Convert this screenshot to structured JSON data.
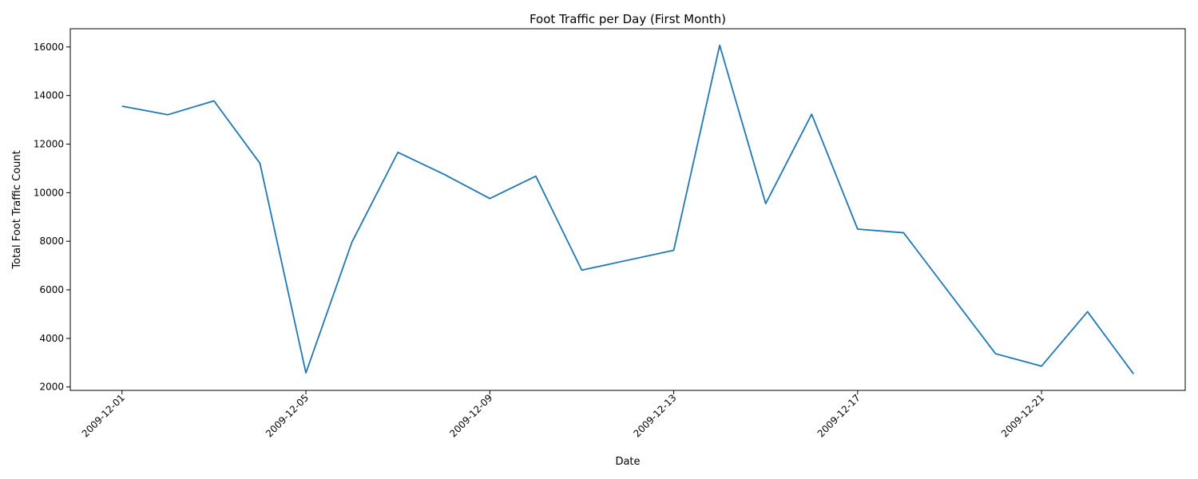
{
  "chart_data": {
    "type": "line",
    "title": "Foot Traffic per Day (First Month)",
    "xlabel": "Date",
    "ylabel": "Total Foot Traffic Count",
    "color": "#1f77b4",
    "grid": false,
    "x": [
      "2009-12-01",
      "2009-12-02",
      "2009-12-03",
      "2009-12-04",
      "2009-12-05",
      "2009-12-06",
      "2009-12-07",
      "2009-12-08",
      "2009-12-09",
      "2009-12-10",
      "2009-12-11",
      "2009-12-13",
      "2009-12-14",
      "2009-12-15",
      "2009-12-16",
      "2009-12-17",
      "2009-12-18",
      "2009-12-20",
      "2009-12-21",
      "2009-12-22",
      "2009-12-23"
    ],
    "values": [
      13560,
      13210,
      13780,
      11210,
      2580,
      7960,
      11660,
      10760,
      9760,
      10680,
      6810,
      7630,
      16070,
      9550,
      13230,
      8500,
      8350,
      3370,
      2860,
      5100,
      2540
    ],
    "xticks": [
      "2009-12-01",
      "2009-12-05",
      "2009-12-09",
      "2009-12-13",
      "2009-12-17",
      "2009-12-21"
    ],
    "yticks": [
      2000,
      4000,
      6000,
      8000,
      10000,
      12000,
      14000,
      16000
    ],
    "xlim": [
      "2009-11-29T21:00",
      "2009-12-24T03:00"
    ],
    "ylim": [
      1860,
      16750
    ]
  }
}
